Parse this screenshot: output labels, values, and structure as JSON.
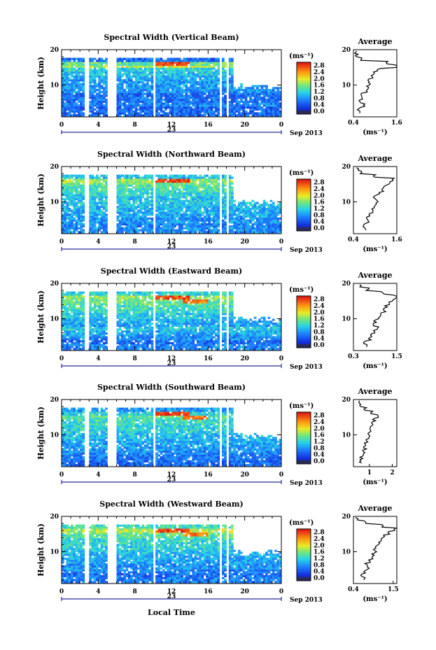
{
  "common": {
    "ylabel": "Height (km)",
    "unit_label": "(ms⁻¹)",
    "avg_title": "Average",
    "date_label": "Sep 2013",
    "date_day": "23",
    "xlabel": "Local Time",
    "height_ticks": [
      "20",
      "10"
    ],
    "time_ticks": [
      "0",
      "4",
      "8",
      "12",
      "16",
      "20",
      "0"
    ]
  },
  "chart_data": [
    {
      "type": "heatmap",
      "title": "Spectral Width (Vertical Beam)",
      "xlabel": "Local Time",
      "ylabel": "Height (km)",
      "x_range": [
        0,
        24
      ],
      "y_range": [
        1,
        20
      ],
      "colorbar": {
        "label": "(ms⁻¹)",
        "ticks": [
          "2.8",
          "2.4",
          "2.0",
          "1.6",
          "1.2",
          "0.8",
          "0.4",
          "0.0"
        ],
        "range": [
          0,
          3.0
        ]
      },
      "average_profile": {
        "title": "Average",
        "xlabel": "(ms⁻¹)",
        "x_ticks": [
          "0.4",
          "1.6"
        ],
        "x_range": [
          0.4,
          1.6
        ],
        "height_km": [
          2,
          3,
          4,
          5,
          6,
          7,
          8,
          9,
          10,
          11,
          12,
          13,
          14,
          15,
          16,
          17,
          18,
          19
        ],
        "values": [
          0.6,
          0.55,
          0.7,
          0.6,
          0.65,
          0.6,
          0.75,
          0.8,
          0.85,
          0.8,
          0.9,
          1.0,
          1.1,
          1.6,
          1.35,
          0.6,
          0.5,
          0.45
        ]
      }
    },
    {
      "type": "heatmap",
      "title": "Spectral Width (Northward Beam)",
      "xlabel": "Local Time",
      "ylabel": "Height (km)",
      "x_range": [
        0,
        24
      ],
      "y_range": [
        1,
        20
      ],
      "colorbar": {
        "label": "(ms⁻¹)",
        "ticks": [
          "2.8",
          "2.4",
          "2.0",
          "1.6",
          "1.2",
          "0.8",
          "0.4",
          "0.0"
        ],
        "range": [
          0,
          3.0
        ]
      },
      "average_profile": {
        "title": "Average",
        "xlabel": "(ms⁻¹)",
        "x_ticks": [
          "0.4",
          "1.6"
        ],
        "x_range": [
          0.4,
          1.6
        ],
        "height_km": [
          2,
          3,
          4,
          5,
          6,
          7,
          8,
          9,
          10,
          11,
          12,
          13,
          14,
          15,
          16,
          17,
          18,
          19
        ],
        "values": [
          0.75,
          0.7,
          0.8,
          0.75,
          0.85,
          0.9,
          0.95,
          1.0,
          1.05,
          1.0,
          1.1,
          1.2,
          1.25,
          1.4,
          1.5,
          1.0,
          0.6,
          0.5
        ]
      }
    },
    {
      "type": "heatmap",
      "title": "Spectral Width (Eastward Beam)",
      "xlabel": "Local Time",
      "ylabel": "Height (km)",
      "x_range": [
        0,
        24
      ],
      "y_range": [
        1,
        20
      ],
      "colorbar": {
        "label": "(ms⁻¹)",
        "ticks": [
          "2.8",
          "2.4",
          "2.0",
          "1.6",
          "1.2",
          "0.8",
          "0.4",
          "0.0"
        ],
        "range": [
          0,
          3.0
        ]
      },
      "average_profile": {
        "title": "Average",
        "xlabel": "(ms⁻¹)",
        "x_ticks": [
          "0.3",
          "1.5"
        ],
        "x_range": [
          0.3,
          1.5
        ],
        "height_km": [
          2,
          3,
          4,
          5,
          6,
          7,
          8,
          9,
          10,
          11,
          12,
          13,
          14,
          15,
          16,
          17,
          18,
          19
        ],
        "values": [
          0.7,
          0.6,
          0.75,
          0.8,
          0.9,
          1.0,
          0.85,
          0.9,
          1.0,
          1.05,
          1.15,
          1.2,
          1.3,
          1.4,
          1.45,
          1.1,
          0.7,
          0.5
        ]
      }
    },
    {
      "type": "heatmap",
      "title": "Spectral Width (Southward Beam)",
      "xlabel": "Local Time",
      "ylabel": "Height (km)",
      "x_range": [
        0,
        24
      ],
      "y_range": [
        1,
        20
      ],
      "colorbar": {
        "label": "(ms⁻¹)",
        "ticks": [
          "2.8",
          "2.4",
          "2.0",
          "1.6",
          "1.2",
          "0.8",
          "0.4",
          "0.0"
        ],
        "range": [
          0,
          3.0
        ]
      },
      "average_profile": {
        "title": "Average",
        "xlabel": "(ms⁻¹)",
        "x_ticks": [
          "1",
          "2"
        ],
        "x_range": [
          0.3,
          2.2
        ],
        "height_km": [
          2,
          3,
          4,
          5,
          6,
          7,
          8,
          9,
          10,
          11,
          12,
          13,
          14,
          15,
          16,
          17,
          18,
          19
        ],
        "values": [
          0.6,
          0.65,
          0.7,
          0.75,
          0.8,
          0.85,
          0.9,
          0.95,
          1.0,
          1.05,
          1.1,
          1.15,
          1.2,
          1.35,
          1.1,
          0.8,
          0.6,
          0.5
        ]
      }
    },
    {
      "type": "heatmap",
      "title": "Spectral Width (Westward Beam)",
      "xlabel": "Local Time",
      "ylabel": "Height (km)",
      "x_range": [
        0,
        24
      ],
      "y_range": [
        1,
        20
      ],
      "colorbar": {
        "label": "(ms⁻¹)",
        "ticks": [
          "2.8",
          "2.4",
          "2.0",
          "1.6",
          "1.2",
          "0.8",
          "0.4",
          "0.0"
        ],
        "range": [
          0,
          3.0
        ]
      },
      "average_profile": {
        "title": "Average",
        "xlabel": "(ms⁻¹)",
        "x_ticks": [
          "0.4",
          "1.5"
        ],
        "x_range": [
          0.4,
          1.6
        ],
        "height_km": [
          2,
          3,
          4,
          5,
          6,
          7,
          8,
          9,
          10,
          11,
          12,
          13,
          14,
          15,
          16,
          17,
          18,
          19
        ],
        "values": [
          0.7,
          0.6,
          0.7,
          0.8,
          0.75,
          0.85,
          0.9,
          0.95,
          1.0,
          1.05,
          1.1,
          1.15,
          1.25,
          1.4,
          1.55,
          1.2,
          0.7,
          0.5
        ]
      }
    }
  ]
}
